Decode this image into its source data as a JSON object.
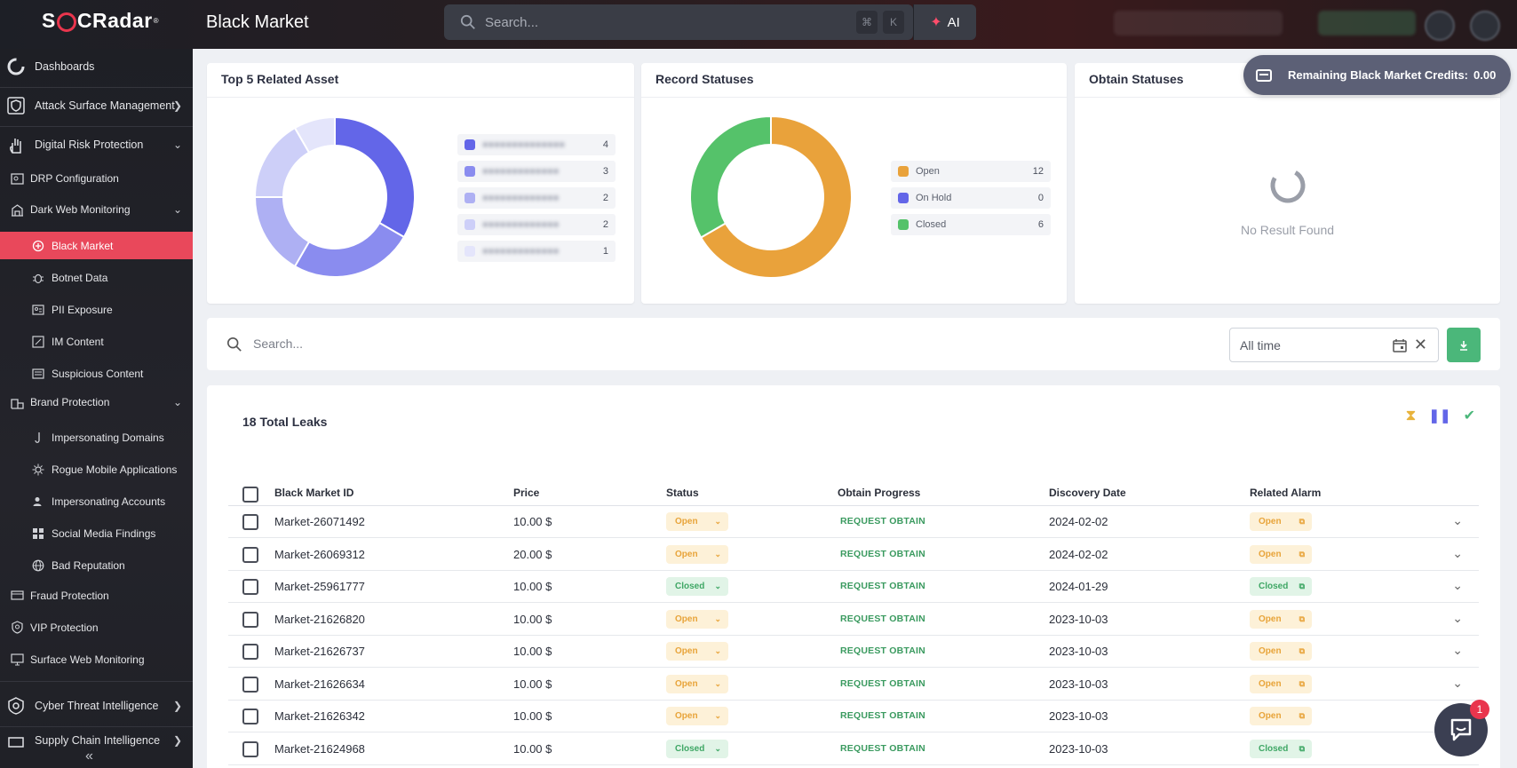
{
  "app": {
    "logo_text": "SOCRadar",
    "page_title": "Black Market"
  },
  "topbar": {
    "search_placeholder": "Search...",
    "kbd_cmd": "⌘",
    "kbd_k": "K",
    "ai_label": "AI"
  },
  "sidebar": {
    "items": [
      {
        "label": "Dashboards",
        "icon": "dashboard-icon"
      },
      {
        "label": "Attack Surface Management",
        "icon": "shield-icon"
      },
      {
        "label": "Digital Risk Protection",
        "icon": "hand-icon"
      },
      {
        "label": "DRP Configuration",
        "icon": "config-icon"
      },
      {
        "label": "Dark Web Monitoring",
        "icon": "building-icon"
      },
      {
        "label": "Black Market",
        "icon": "blackmarket-icon"
      },
      {
        "label": "Botnet Data",
        "icon": "bug-icon"
      },
      {
        "label": "PII Exposure",
        "icon": "id-icon"
      },
      {
        "label": "IM Content",
        "icon": "chat-icon"
      },
      {
        "label": "Suspicious Content",
        "icon": "warning-icon"
      },
      {
        "label": "Brand Protection",
        "icon": "brand-icon"
      },
      {
        "label": "Impersonating Domains",
        "icon": "hook-icon"
      },
      {
        "label": "Rogue Mobile Applications",
        "icon": "gear-icon"
      },
      {
        "label": "Impersonating Accounts",
        "icon": "user-icon"
      },
      {
        "label": "Social Media Findings",
        "icon": "grid-icon"
      },
      {
        "label": "Bad Reputation",
        "icon": "globe-icon"
      },
      {
        "label": "Fraud Protection",
        "icon": "fraud-icon"
      },
      {
        "label": "VIP Protection",
        "icon": "vip-icon"
      },
      {
        "label": "Surface Web Monitoring",
        "icon": "monitor-icon"
      },
      {
        "label": "Cyber Threat Intelligence",
        "icon": "eye-icon"
      },
      {
        "label": "Supply Chain Intelligence",
        "icon": "chain-icon"
      }
    ]
  },
  "credits": {
    "label": "Remaining Black Market Credits:",
    "value": "0.00"
  },
  "cards": {
    "assets": {
      "title": "Top 5 Related Asset",
      "colors": [
        "#6366e8",
        "#8a8cef",
        "#aeb0f3",
        "#cdcff8",
        "#e4e5fb"
      ],
      "counts": [
        "4",
        "3",
        "2",
        "2",
        "1"
      ]
    },
    "record": {
      "title": "Record Statuses",
      "legend": [
        {
          "label": "Open",
          "count": "12",
          "color": "#e9a23b"
        },
        {
          "label": "On Hold",
          "count": "0",
          "color": "#6366e8"
        },
        {
          "label": "Closed",
          "count": "6",
          "color": "#55c26a"
        }
      ]
    },
    "obtain": {
      "title": "Obtain Statuses",
      "empty_text": "No Result Found"
    }
  },
  "filter": {
    "search_placeholder": "Search...",
    "date_value": "All time"
  },
  "table": {
    "total_label": "18 Total Leaks",
    "columns": [
      "Black Market ID",
      "Price",
      "Status",
      "Obtain Progress",
      "Discovery Date",
      "Related Alarm"
    ],
    "rows": [
      {
        "id": "Market-26071492",
        "price": "10.00 $",
        "status": "Open",
        "action": "REQUEST OBTAIN",
        "date": "2024-02-02",
        "alarm": "Open"
      },
      {
        "id": "Market-26069312",
        "price": "20.00 $",
        "status": "Open",
        "action": "REQUEST OBTAIN",
        "date": "2024-02-02",
        "alarm": "Open"
      },
      {
        "id": "Market-25961777",
        "price": "10.00 $",
        "status": "Closed",
        "action": "REQUEST OBTAIN",
        "date": "2024-01-29",
        "alarm": "Closed"
      },
      {
        "id": "Market-21626820",
        "price": "10.00 $",
        "status": "Open",
        "action": "REQUEST OBTAIN",
        "date": "2023-10-03",
        "alarm": "Open"
      },
      {
        "id": "Market-21626737",
        "price": "10.00 $",
        "status": "Open",
        "action": "REQUEST OBTAIN",
        "date": "2023-10-03",
        "alarm": "Open"
      },
      {
        "id": "Market-21626634",
        "price": "10.00 $",
        "status": "Open",
        "action": "REQUEST OBTAIN",
        "date": "2023-10-03",
        "alarm": "Open"
      },
      {
        "id": "Market-21626342",
        "price": "10.00 $",
        "status": "Open",
        "action": "REQUEST OBTAIN",
        "date": "2023-10-03",
        "alarm": "Open"
      },
      {
        "id": "Market-21624968",
        "price": "10.00 $",
        "status": "Closed",
        "action": "REQUEST OBTAIN",
        "date": "2023-10-03",
        "alarm": "Closed"
      }
    ]
  },
  "help": {
    "badge": "1"
  }
}
